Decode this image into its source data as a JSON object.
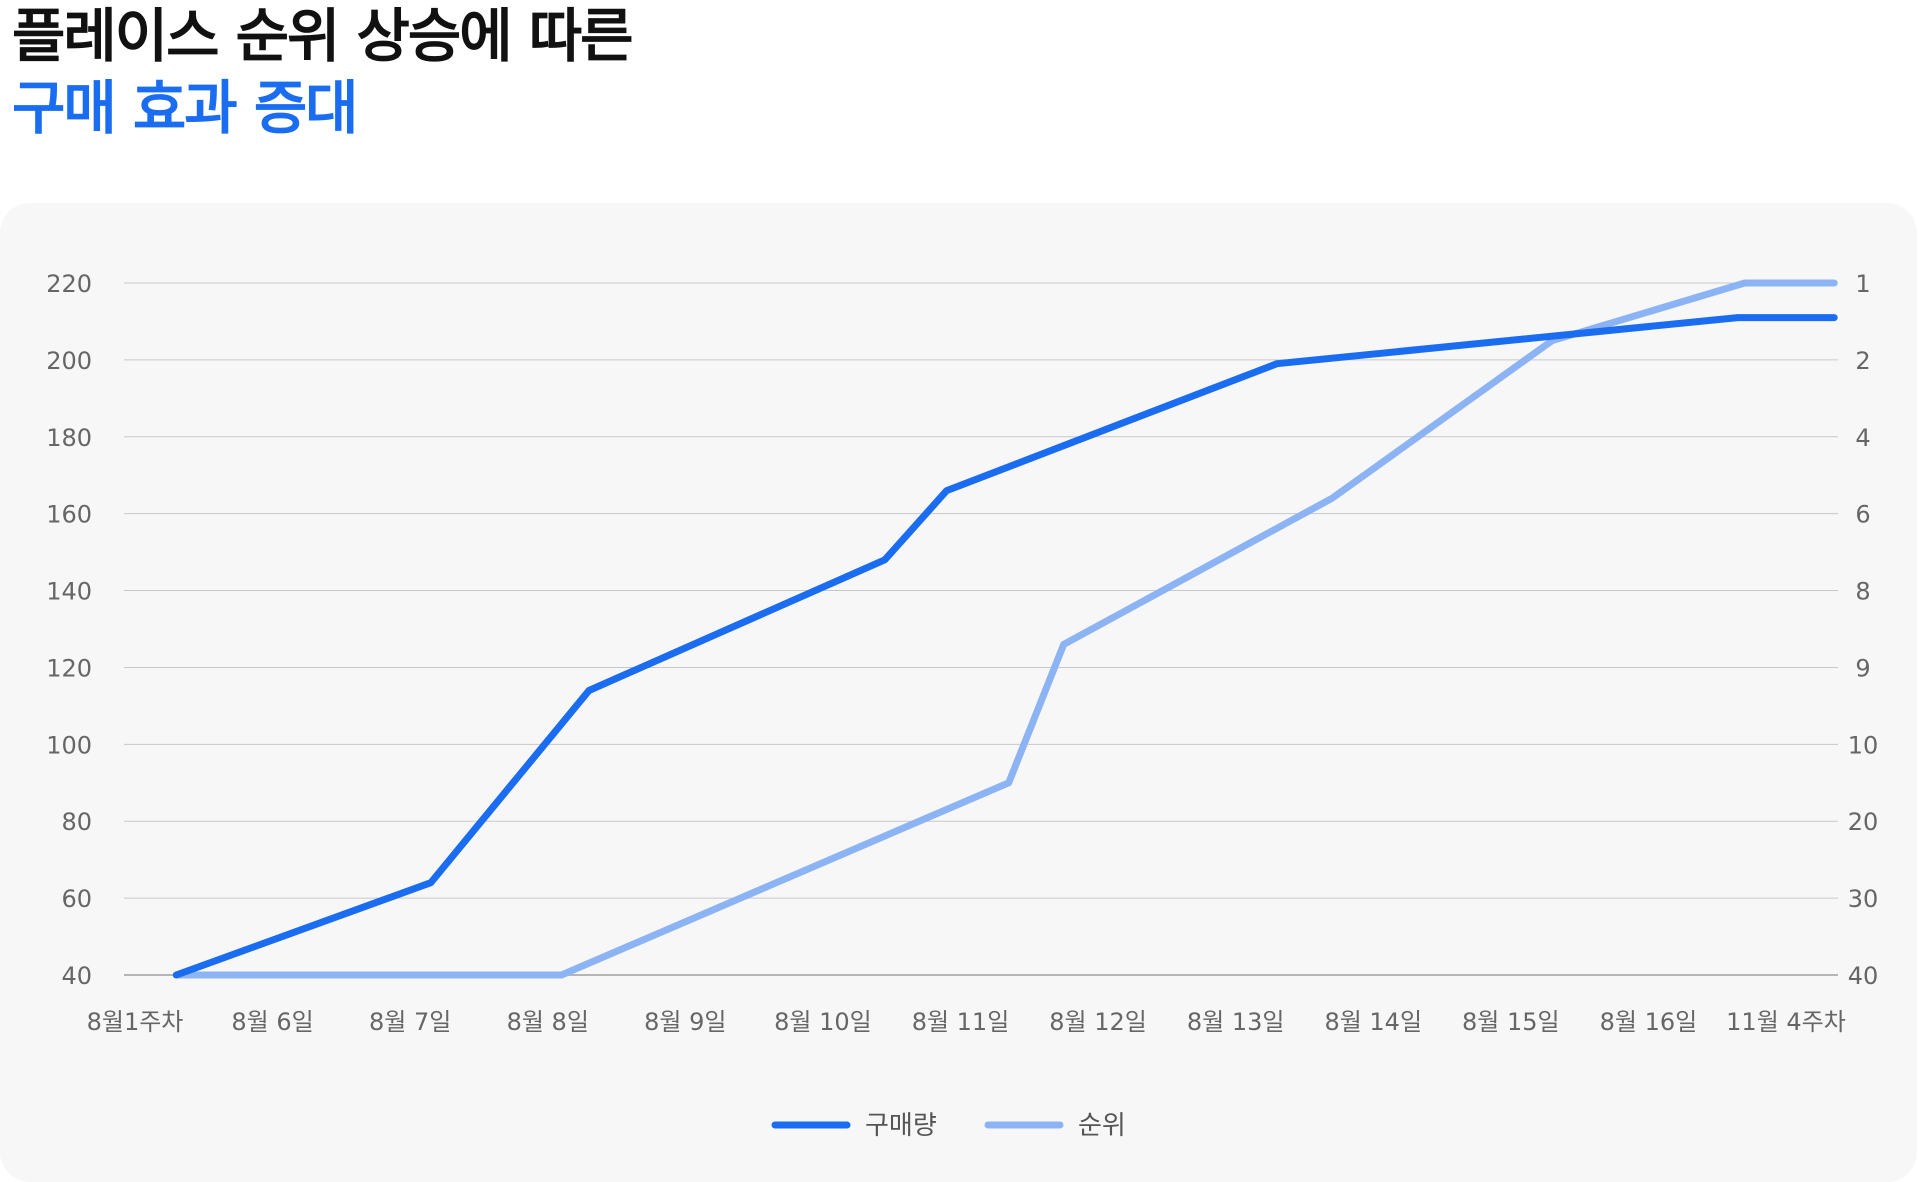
{
  "title": {
    "line1": "플레이스 순위 상승에 따른",
    "line2": "구매 효과 증대"
  },
  "colors": {
    "title_dark": "#111111",
    "accent": "#1a6cf0",
    "series_1": "#1a6cf0",
    "series_2": "#8cb4f5",
    "grid": "#c8c8c8",
    "panel_bg": "#f7f7f8"
  },
  "chart_data": {
    "type": "line",
    "categories": [
      "8월1주차",
      "8월 6일",
      "8월 7일",
      "8월 8일",
      "8월 9일",
      "8월 10일",
      "8월 11일",
      "8월 12일",
      "8월 13일",
      "8월 14일",
      "8월 15일",
      "8월 16일",
      "11월 4주차"
    ],
    "y_left": {
      "ticks": [
        40,
        60,
        80,
        100,
        120,
        140,
        160,
        180,
        200,
        220
      ],
      "ylim": [
        40,
        220
      ]
    },
    "y_right": {
      "tick_labels": [
        "40",
        "30",
        "20",
        "10",
        "9",
        "8",
        "6",
        "4",
        "2",
        "1"
      ]
    },
    "grid": true,
    "legend": "bottom-center",
    "series": [
      {
        "name": "구매량",
        "axis": "left",
        "color": "#1a6cf0",
        "points": [
          {
            "x": 0.3,
            "y": 40
          },
          {
            "x": 2.15,
            "y": 64
          },
          {
            "x": 3.3,
            "y": 114
          },
          {
            "x": 5.45,
            "y": 148
          },
          {
            "x": 5.9,
            "y": 166
          },
          {
            "x": 8.3,
            "y": 199
          },
          {
            "x": 11.65,
            "y": 211
          },
          {
            "x": 12.35,
            "y": 211
          }
        ]
      },
      {
        "name": "순위",
        "axis": "right",
        "color": "#8cb4f5",
        "points": [
          {
            "x": 0.3,
            "y": 40
          },
          {
            "x": 3.1,
            "y": 40
          },
          {
            "x": 6.35,
            "y": 15
          },
          {
            "x": 6.75,
            "y": 8.7
          },
          {
            "x": 8.7,
            "y": 5.6
          },
          {
            "x": 10.3,
            "y": 1.75
          },
          {
            "x": 11.7,
            "y": 1
          },
          {
            "x": 12.35,
            "y": 1
          }
        ]
      }
    ]
  }
}
